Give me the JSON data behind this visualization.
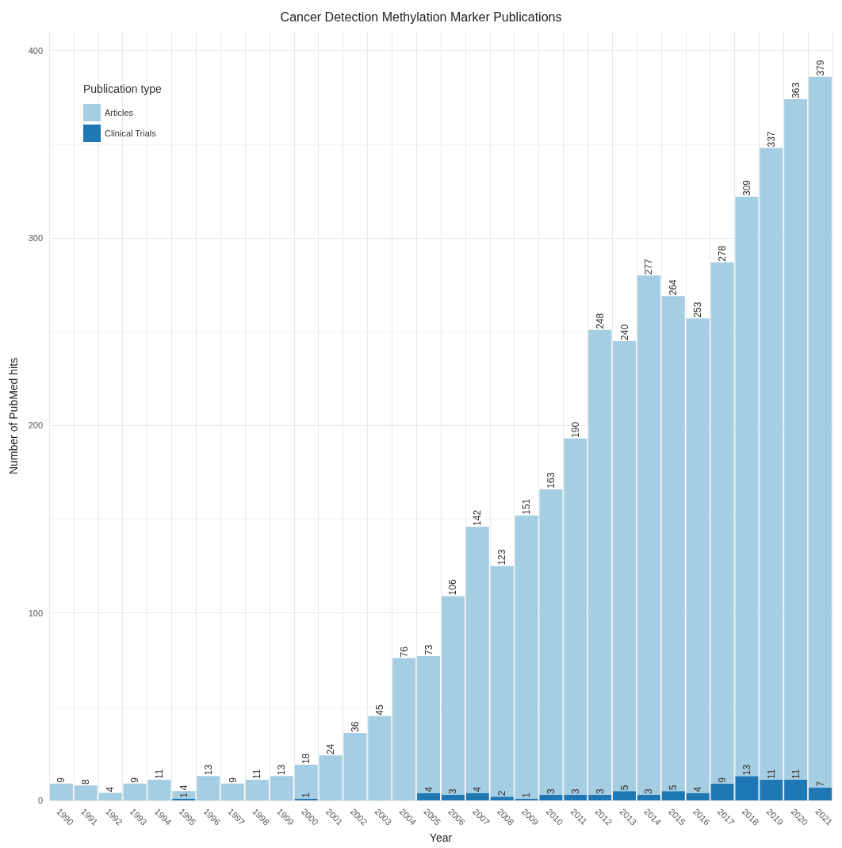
{
  "chart_data": {
    "type": "bar",
    "title": "Cancer Detection Methylation Marker Publications",
    "xlabel": "Year",
    "ylabel": "Number of PubMed hits",
    "legend_title": "Publication type",
    "categories": [
      "1990",
      "1991",
      "1992",
      "1993",
      "1994",
      "1995",
      "1996",
      "1997",
      "1998",
      "1999",
      "2000",
      "2001",
      "2002",
      "2003",
      "2004",
      "2005",
      "2006",
      "2007",
      "2008",
      "2009",
      "2010",
      "2011",
      "2012",
      "2013",
      "2014",
      "2015",
      "2016",
      "2017",
      "2018",
      "2019",
      "2020",
      "2021"
    ],
    "stacked": true,
    "series": [
      {
        "name": "Clinical Trials",
        "color": "#1f78b4",
        "values": [
          null,
          null,
          null,
          null,
          null,
          1,
          null,
          null,
          null,
          null,
          1,
          null,
          null,
          null,
          null,
          4,
          3,
          4,
          2,
          1,
          3,
          3,
          3,
          5,
          3,
          5,
          4,
          9,
          13,
          11,
          11,
          7
        ]
      },
      {
        "name": "Articles",
        "color": "#a6cee3",
        "values": [
          9,
          8,
          4,
          9,
          11,
          4,
          13,
          9,
          11,
          13,
          18,
          24,
          36,
          45,
          76,
          73,
          106,
          142,
          123,
          151,
          163,
          190,
          248,
          240,
          277,
          264,
          253,
          278,
          309,
          337,
          363,
          379
        ]
      }
    ],
    "ylim": [
      0,
      410
    ],
    "yticks": [
      0,
      100,
      200,
      300,
      400
    ],
    "grid": true,
    "legend": "top left",
    "data_labels": true
  }
}
